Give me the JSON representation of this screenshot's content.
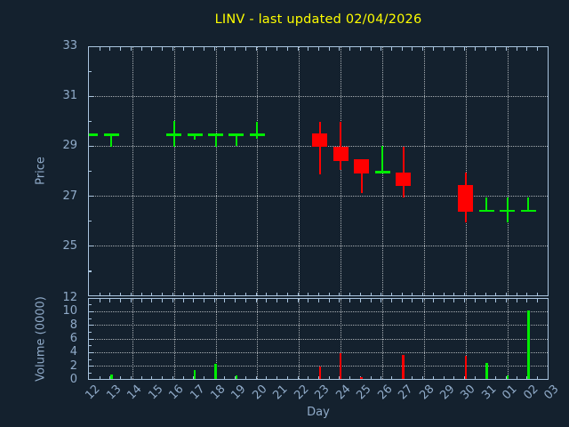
{
  "title": "LINV - last updated 02/04/2026",
  "price_axis": {
    "label": "Price",
    "ticks": [
      33,
      31,
      29,
      27,
      25
    ]
  },
  "volume_axis": {
    "label": "Volume (0000)",
    "ticks": [
      12,
      10,
      8,
      6,
      4,
      2,
      0
    ]
  },
  "x_axis": {
    "label": "Day",
    "tick_labels": [
      "12",
      "13",
      "14",
      "15",
      "16",
      "17",
      "18",
      "19",
      "20",
      "21",
      "22",
      "23",
      "24",
      "25",
      "26",
      "27",
      "28",
      "29",
      "30",
      "31",
      "01",
      "02",
      "03"
    ]
  },
  "colors": {
    "background": "#14212e",
    "axis": "#a9c4de",
    "tick_label": "#90abc9",
    "grid": "#c4c8cc",
    "title": "#fdfd00",
    "up": "#00ed00",
    "down": "#ff0000"
  },
  "chart_data": {
    "type": "candlestick",
    "subpanels": [
      "price",
      "volume"
    ],
    "x_categories": [
      "12",
      "13",
      "14",
      "15",
      "16",
      "17",
      "18",
      "19",
      "20",
      "21",
      "22",
      "23",
      "24",
      "25",
      "26",
      "27",
      "28",
      "29",
      "30",
      "31",
      "01",
      "02",
      "03"
    ],
    "price_ylim": [
      23,
      33
    ],
    "volume_ylim": [
      0,
      12
    ],
    "grid": {
      "style": "dotted",
      "x_step_days": 2,
      "price_step": 2,
      "volume_step": 2
    },
    "candles": [
      {
        "day": "12",
        "open": 29.5,
        "high": 29.5,
        "low": 29.5,
        "close": 29.5
      },
      {
        "day": "13",
        "open": 29.5,
        "high": 29.5,
        "low": 29.0,
        "close": 29.5
      },
      {
        "day": "16",
        "open": 29.5,
        "high": 30.05,
        "low": 29.0,
        "close": 29.5
      },
      {
        "day": "17",
        "open": 29.5,
        "high": 29.5,
        "low": 29.3,
        "close": 29.5
      },
      {
        "day": "18",
        "open": 29.5,
        "high": 29.5,
        "low": 29.0,
        "close": 29.5
      },
      {
        "day": "19",
        "open": 29.5,
        "high": 29.5,
        "low": 29.05,
        "close": 29.5
      },
      {
        "day": "20",
        "open": 29.5,
        "high": 30.0,
        "low": 29.35,
        "close": 29.5
      },
      {
        "day": "23",
        "open": 29.55,
        "high": 30.0,
        "low": 27.9,
        "close": 29.0
      },
      {
        "day": "24",
        "open": 29.0,
        "high": 30.0,
        "low": 28.1,
        "close": 28.45
      },
      {
        "day": "25",
        "open": 28.5,
        "high": 28.5,
        "low": 27.15,
        "close": 27.95
      },
      {
        "day": "26",
        "open": 28.0,
        "high": 29.05,
        "low": 27.95,
        "close": 28.0
      },
      {
        "day": "27",
        "open": 28.0,
        "high": 29.0,
        "low": 27.0,
        "close": 27.45
      },
      {
        "day": "30",
        "open": 27.5,
        "high": 28.0,
        "low": 26.0,
        "close": 26.4
      },
      {
        "day": "31",
        "open": 26.45,
        "high": 27.0,
        "low": 26.45,
        "close": 26.45
      },
      {
        "day": "01",
        "open": 26.45,
        "high": 27.0,
        "low": 26.0,
        "close": 26.45
      },
      {
        "day": "02",
        "open": 26.45,
        "high": 27.0,
        "low": 26.45,
        "close": 26.45
      }
    ],
    "volumes": [
      {
        "day": "13",
        "value": 0.6
      },
      {
        "day": "17",
        "value": 1.3
      },
      {
        "day": "18",
        "value": 2.2
      },
      {
        "day": "19",
        "value": 0.5
      },
      {
        "day": "23",
        "value": 1.8
      },
      {
        "day": "24",
        "value": 3.8
      },
      {
        "day": "25",
        "value": 0.3
      },
      {
        "day": "27",
        "value": 3.5
      },
      {
        "day": "30",
        "value": 3.4
      },
      {
        "day": "31",
        "value": 2.4
      },
      {
        "day": "01",
        "value": 0.5
      },
      {
        "day": "02",
        "value": 10.0
      }
    ]
  }
}
